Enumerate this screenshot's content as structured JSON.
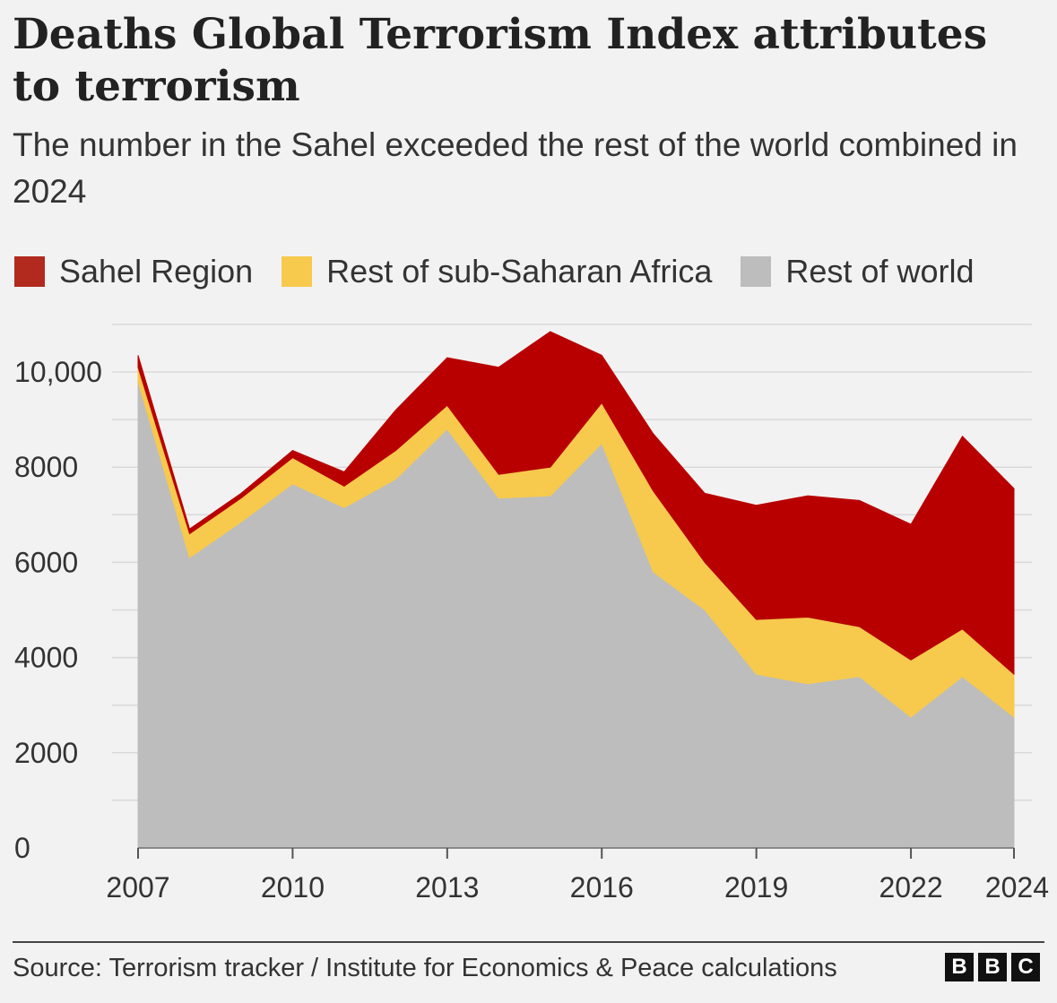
{
  "chart_data": {
    "type": "area",
    "stacked": true,
    "title": "Deaths Global Terrorism Index attributes to terrorism",
    "subtitle": "The number in the Sahel exceeded the rest of the world combined in 2024",
    "x": [
      2007,
      2008,
      2009,
      2010,
      2011,
      2012,
      2013,
      2014,
      2015,
      2016,
      2017,
      2018,
      2019,
      2020,
      2021,
      2022,
      2023,
      2024
    ],
    "x_ticks": [
      2007,
      2010,
      2013,
      2016,
      2019,
      2022,
      2024
    ],
    "x_tick_labels": [
      "2007",
      "2010",
      "2013",
      "2016",
      "2019",
      "2022",
      "2024"
    ],
    "y_ticks": [
      0,
      2000,
      4000,
      6000,
      8000,
      10000
    ],
    "y_tick_labels": [
      "0",
      "2000",
      "4000",
      "6000",
      "8000",
      "10,000"
    ],
    "ylim": [
      0,
      11000
    ],
    "grid": true,
    "legend_position": "top-left",
    "series": [
      {
        "name": "Rest of world",
        "color": "#bdbdbd",
        "values": [
          9800,
          6100,
          6850,
          7650,
          7150,
          7750,
          8800,
          7350,
          7400,
          8500,
          5800,
          5000,
          3650,
          3450,
          3600,
          2750,
          3600,
          2750
        ]
      },
      {
        "name": "Rest of sub-Saharan Africa",
        "color": "#f7ca4d",
        "values": [
          300,
          500,
          500,
          550,
          450,
          600,
          500,
          500,
          600,
          850,
          1700,
          1000,
          1150,
          1400,
          1050,
          1200,
          1000,
          900
        ]
      },
      {
        "name": "Sahel Region",
        "color": "#b80000",
        "values": [
          250,
          100,
          100,
          150,
          300,
          850,
          1000,
          2250,
          2850,
          1000,
          1200,
          1450,
          2400,
          2550,
          2650,
          2850,
          4050,
          3900
        ]
      }
    ]
  },
  "legend": [
    {
      "label": "Sahel Region",
      "color": "#b22a1e"
    },
    {
      "label": "Rest of sub-Saharan Africa",
      "color": "#f7ca4d"
    },
    {
      "label": "Rest of world",
      "color": "#bdbdbd"
    }
  ],
  "footer": {
    "source": "Source: Terrorism tracker / Institute for Economics & Peace calculations",
    "logo_letters": [
      "B",
      "B",
      "C"
    ]
  }
}
